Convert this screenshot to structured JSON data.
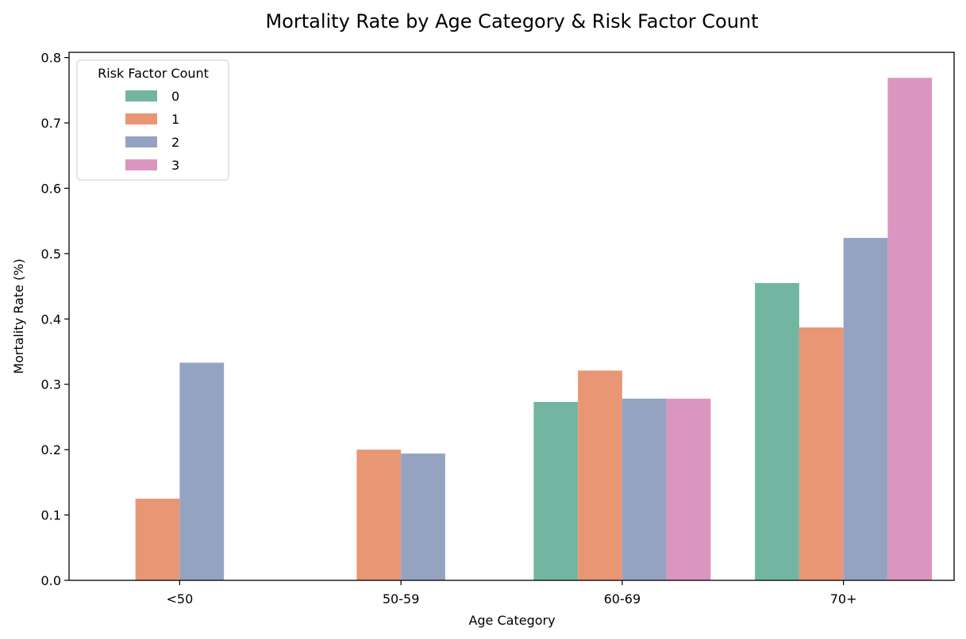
{
  "chart_data": {
    "type": "bar",
    "title": "Mortality Rate by Age Category & Risk Factor Count",
    "xlabel": "Age Category",
    "ylabel": "Mortality Rate (%)",
    "categories": [
      "<50",
      "50-59",
      "60-69",
      "70+"
    ],
    "ylim": [
      0,
      0.808
    ],
    "yticks": [
      0.0,
      0.1,
      0.2,
      0.3,
      0.4,
      0.5,
      0.6,
      0.7,
      0.8
    ],
    "ytick_labels": [
      "0.0",
      "0.1",
      "0.2",
      "0.3",
      "0.4",
      "0.5",
      "0.6",
      "0.7",
      "0.8"
    ],
    "grid": false,
    "legend": {
      "title": "Risk Factor Count",
      "placement": "top-left"
    },
    "series": [
      {
        "name": "0",
        "color": "#72b6a1",
        "values": [
          null,
          null,
          0.273,
          0.455
        ]
      },
      {
        "name": "1",
        "color": "#e99675",
        "values": [
          0.125,
          0.2,
          0.321,
          0.387
        ]
      },
      {
        "name": "2",
        "color": "#95a3c3",
        "values": [
          0.333,
          0.194,
          0.278,
          0.524
        ]
      },
      {
        "name": "3",
        "color": "#db96c0",
        "values": [
          null,
          null,
          0.278,
          0.769
        ]
      }
    ]
  }
}
